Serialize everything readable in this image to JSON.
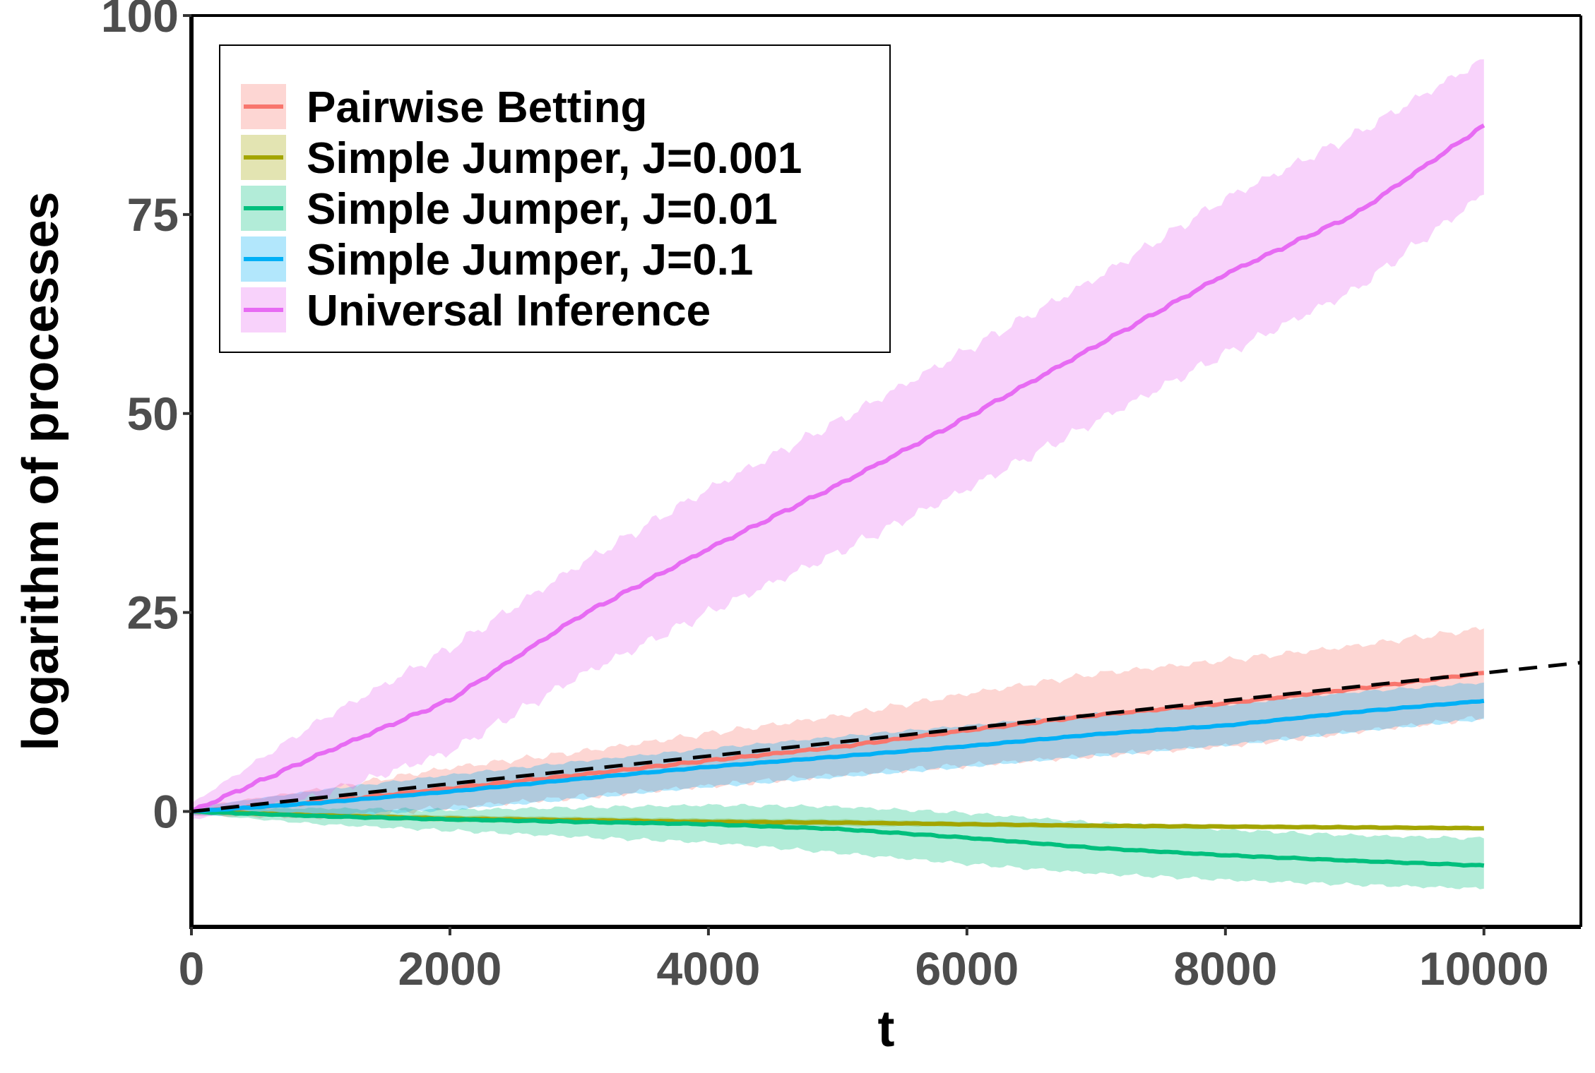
{
  "chart_data": {
    "type": "line",
    "xlabel": "t",
    "ylabel": "logarithm of processes",
    "xlim": [
      0,
      10750
    ],
    "ylim": [
      -14.5,
      100
    ],
    "xticks": [
      0,
      2000,
      4000,
      6000,
      8000,
      10000
    ],
    "yticks": [
      0,
      25,
      50,
      75,
      100
    ],
    "xtick_labels": [
      "0",
      "2000",
      "4000",
      "6000",
      "8000",
      "10000"
    ],
    "ytick_labels": [
      "0",
      "25",
      "50",
      "75",
      "100"
    ],
    "grid": false,
    "legend_position": "top-left",
    "series": [
      {
        "name": "Pairwise Betting",
        "color": "#F8766D",
        "x": [
          0,
          1000,
          2000,
          3000,
          4000,
          5000,
          6000,
          7000,
          8000,
          9000,
          10000
        ],
        "values": [
          0,
          1.2,
          2.9,
          4.6,
          6.4,
          8.1,
          10.2,
          12.1,
          13.6,
          15.4,
          17.4
        ],
        "band_lower": [
          -0.5,
          -0.8,
          0.5,
          1.8,
          3.2,
          4.6,
          5.8,
          7.0,
          8.2,
          10.0,
          11.8
        ],
        "band_upper": [
          0.5,
          2.8,
          5.5,
          7.5,
          9.8,
          12.0,
          14.8,
          17.3,
          19.0,
          20.8,
          23.0
        ]
      },
      {
        "name": "Simple Jumper, J=0.001",
        "color": "#A3A500",
        "x": [
          0,
          1000,
          2000,
          3000,
          4000,
          5000,
          6000,
          7000,
          8000,
          9000,
          10000
        ],
        "values": [
          0,
          -0.5,
          -0.9,
          -1.1,
          -1.3,
          -1.4,
          -1.6,
          -1.8,
          -1.9,
          -2.0,
          -2.1
        ],
        "band_lower": [
          0,
          -0.8,
          -1.3,
          -1.5,
          -1.7,
          -1.8,
          -1.9,
          -2.1,
          -2.2,
          -2.3,
          -2.4
        ],
        "band_upper": [
          0,
          -0.2,
          -0.5,
          -0.7,
          -0.9,
          -1.0,
          -1.3,
          -1.5,
          -1.6,
          -1.7,
          -1.8
        ]
      },
      {
        "name": "Simple Jumper, J=0.01",
        "color": "#00BF7D",
        "x": [
          0,
          1000,
          2000,
          3000,
          4000,
          5000,
          6000,
          7000,
          8000,
          9000,
          10000
        ],
        "values": [
          0,
          -0.6,
          -1.0,
          -1.3,
          -1.6,
          -2.2,
          -3.3,
          -4.6,
          -5.5,
          -6.2,
          -6.8
        ],
        "band_lower": [
          -0.3,
          -1.6,
          -2.4,
          -3.2,
          -3.9,
          -5.2,
          -6.6,
          -7.8,
          -8.6,
          -9.2,
          -9.7
        ],
        "band_upper": [
          0.3,
          0.4,
          0.2,
          0.5,
          0.8,
          0.6,
          -0.2,
          -1.4,
          -2.3,
          -3.0,
          -3.4
        ]
      },
      {
        "name": "Simple Jumper, J=0.1",
        "color": "#00B0F6",
        "x": [
          0,
          1000,
          2000,
          3000,
          4000,
          5000,
          6000,
          7000,
          8000,
          9000,
          10000
        ],
        "values": [
          0,
          1.1,
          2.5,
          4.1,
          5.6,
          6.9,
          8.2,
          9.7,
          10.8,
          12.5,
          13.9
        ],
        "band_lower": [
          -0.5,
          -0.5,
          0.2,
          1.6,
          3.1,
          4.3,
          5.6,
          7.0,
          8.3,
          10.0,
          11.6
        ],
        "band_upper": [
          0.5,
          2.7,
          4.6,
          6.3,
          7.9,
          9.4,
          10.8,
          12.3,
          13.4,
          15.0,
          16.2
        ]
      },
      {
        "name": "Universal Inference",
        "color": "#E76BF3",
        "x": [
          0,
          1000,
          2000,
          3000,
          4000,
          5000,
          6000,
          7000,
          8000,
          9000,
          10000
        ],
        "values": [
          0,
          7.2,
          14.0,
          24.5,
          33.0,
          41.0,
          49.5,
          58.5,
          67.5,
          75.0,
          86.2
        ],
        "band_lower": [
          -1.0,
          2.0,
          7.5,
          17.0,
          25.0,
          32.5,
          40.5,
          49.0,
          57.5,
          65.5,
          77.5
        ],
        "band_upper": [
          1.0,
          11.5,
          20.5,
          31.0,
          40.5,
          49.0,
          58.0,
          67.0,
          77.0,
          85.0,
          94.5
        ]
      }
    ],
    "reference_line": {
      "style": "dashed",
      "color": "#000000",
      "x": [
        0,
        10750
      ],
      "values": [
        0,
        18.7
      ]
    }
  }
}
